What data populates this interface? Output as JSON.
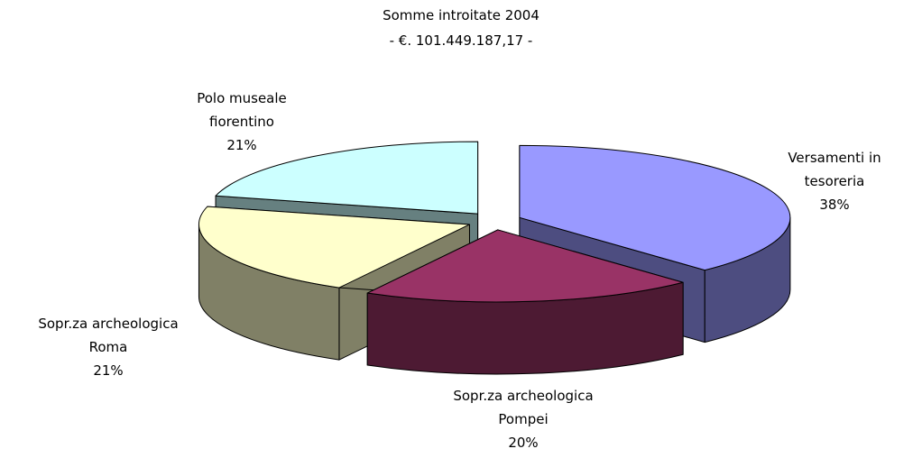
{
  "chart_data": {
    "type": "pie3d",
    "title": "Somme introitate 2004",
    "subtitle": "- €. 101.449.187,17 -",
    "categories": [
      "Versamenti in tesoreria",
      "Sopr.za archeologica Pompei",
      "Sopr.za archeologica Roma",
      "Polo museale fiorentino"
    ],
    "values": [
      38,
      20,
      21,
      21
    ],
    "value_labels": [
      "38%",
      "20%",
      "21%",
      "21%"
    ],
    "colors": [
      "#9999ff",
      "#993366",
      "#ffffcc",
      "#ccffff"
    ]
  }
}
